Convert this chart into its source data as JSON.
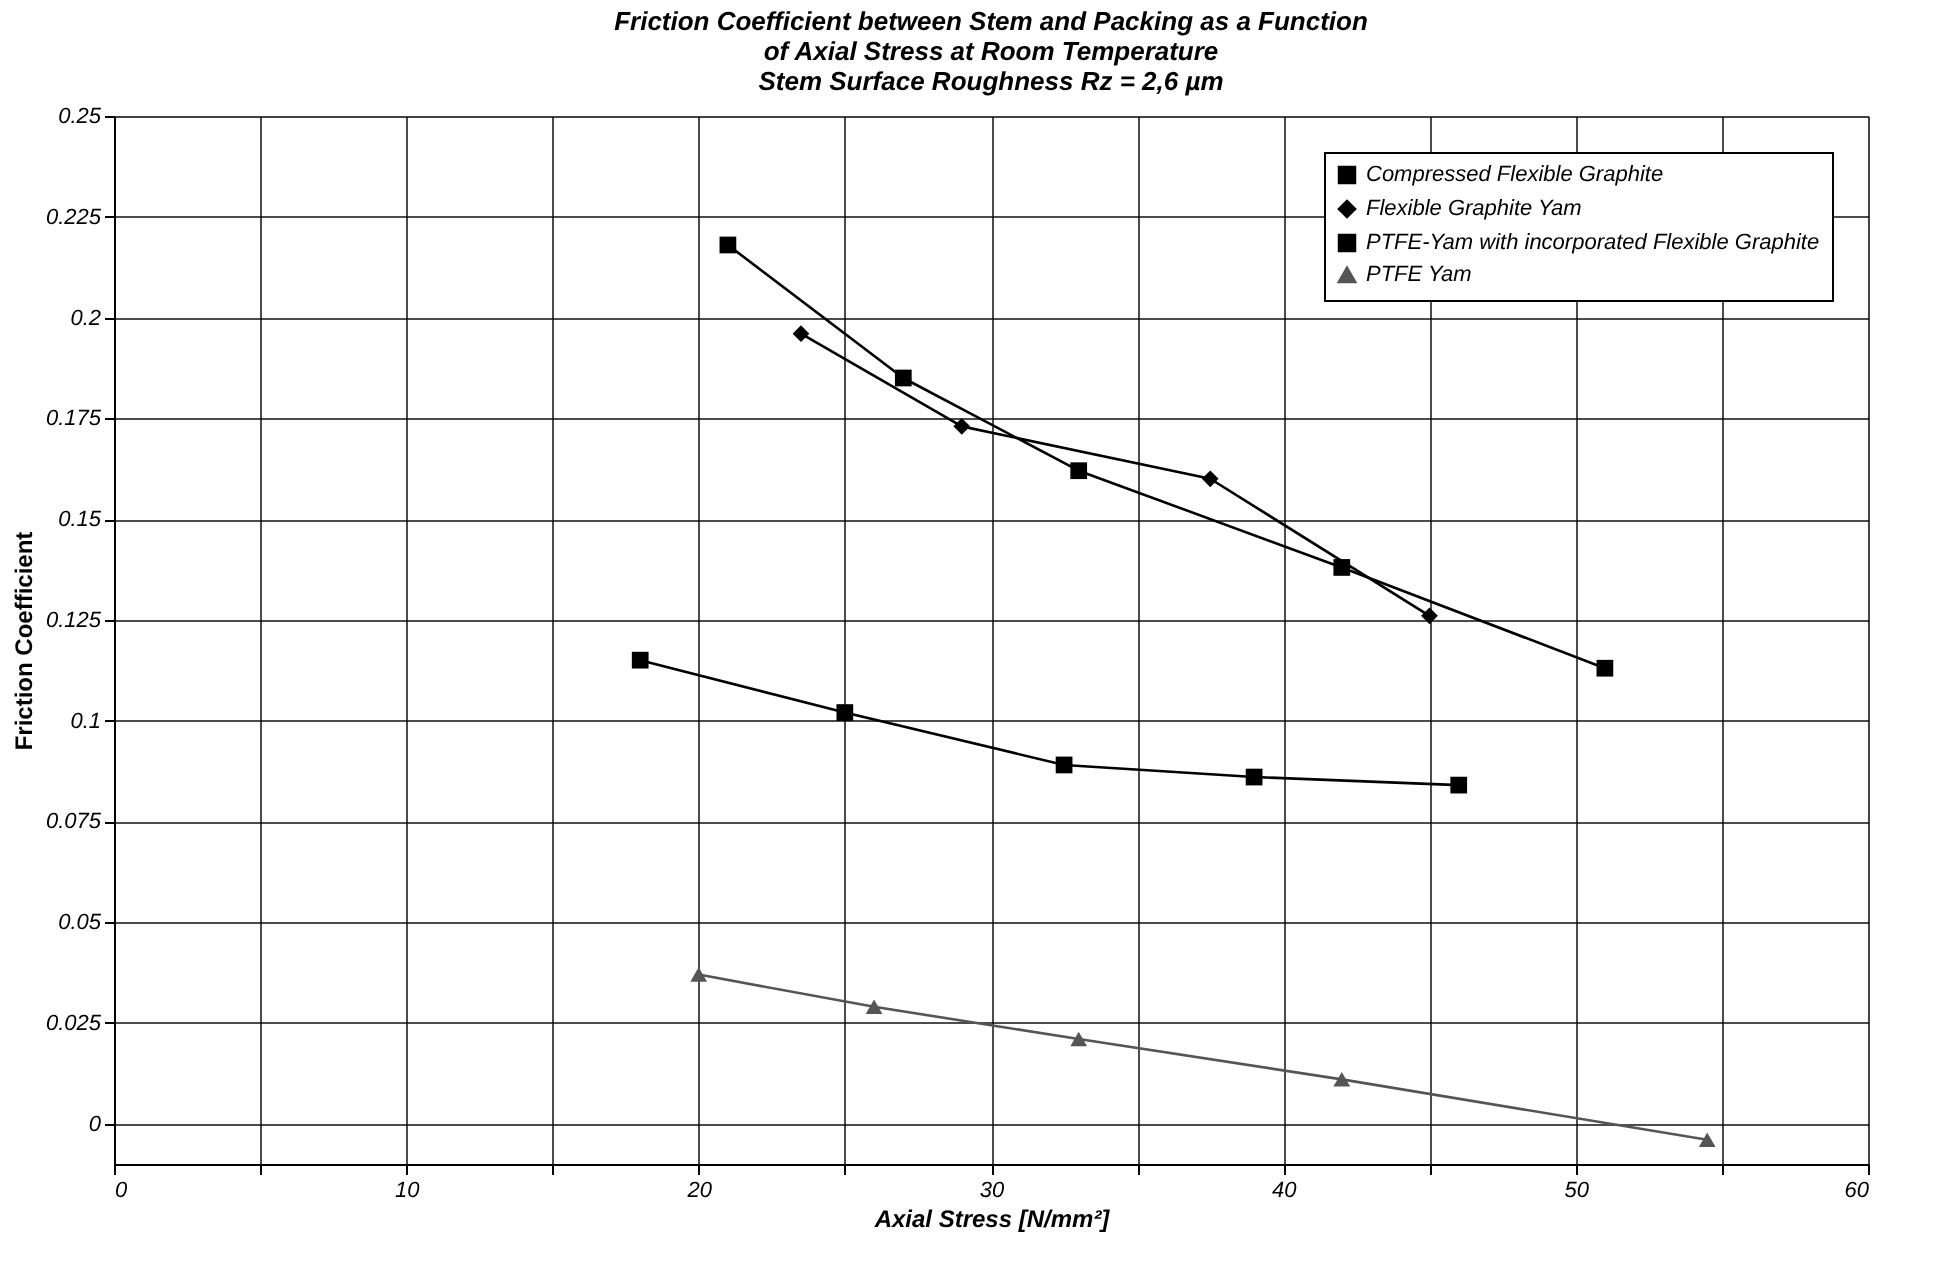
{
  "chart_data": {
    "type": "line",
    "title": [
      "Friction Coefficient between Stem and Packing as a Function",
      "of Axial Stress at Room Temperature",
      "Stem Surface Roughness Rz = 2,6 µm"
    ],
    "xlabel": "Axial Stress [N/mm²]",
    "ylabel": "Friction Coefficient",
    "xlim": [
      0,
      60
    ],
    "xticks": [
      0,
      {
        "value": 5,
        "label": null
      },
      10,
      {
        "value": 15,
        "label": null
      },
      20,
      {
        "value": 25,
        "label": null
      },
      30,
      {
        "value": 35,
        "label": null
      },
      40,
      {
        "value": 45,
        "label": null
      },
      50,
      {
        "value": 55,
        "label": null
      },
      60
    ],
    "ylim": [
      -0.01,
      0.25
    ],
    "yticks": [
      0,
      0.025,
      0.05,
      0.075,
      0.1,
      0.125,
      0.15,
      0.175,
      0.2,
      0.225,
      0.25
    ],
    "grid": true,
    "legend": "top right",
    "line_style": "solid",
    "series": [
      {
        "name": "Compressed Flexible Graphite",
        "color": "#000000",
        "marker": "square",
        "x": [
          21,
          27,
          33,
          42,
          51
        ],
        "values": [
          0.218,
          0.185,
          0.162,
          0.138,
          0.113
        ]
      },
      {
        "name": "Flexible Graphite Yam",
        "color": "#000000",
        "marker": "diamond",
        "x": [
          23.5,
          29,
          37.5,
          45
        ],
        "values": [
          0.196,
          0.173,
          0.16,
          0.126
        ]
      },
      {
        "name": "PTFE-Yam with incorporated Flexible Graphite",
        "color": "#000000",
        "marker": "square",
        "x": [
          18,
          25,
          32.5,
          39,
          46
        ],
        "values": [
          0.115,
          0.102,
          0.089,
          0.086,
          0.084
        ]
      },
      {
        "name": "PTFE Yam",
        "color": "#555555",
        "marker": "triangle",
        "x": [
          20,
          26,
          33,
          42,
          54.5
        ],
        "values": [
          0.037,
          0.029,
          0.021,
          0.011,
          -0.004
        ]
      }
    ]
  }
}
